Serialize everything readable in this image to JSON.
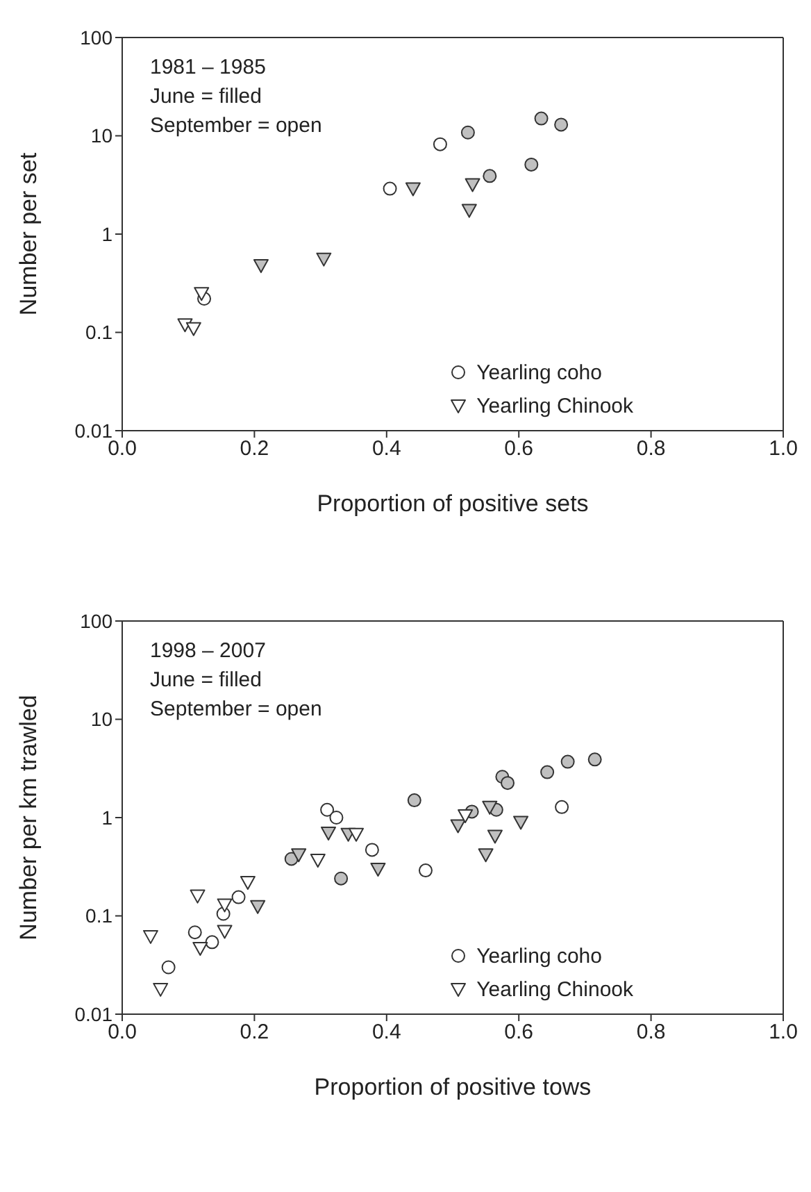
{
  "chart_data": [
    {
      "type": "scatter",
      "xlabel": "Proportion of positive sets",
      "ylabel": "Number per set",
      "log": "y",
      "legend": "bottom right",
      "xlim": [
        0,
        1
      ],
      "xticks": [
        {
          "value": 0,
          "label": "0.0"
        },
        {
          "value": 0.2,
          "label": "0.2"
        },
        {
          "value": 0.4,
          "label": "0.4"
        },
        {
          "value": 0.6,
          "label": "0.6"
        },
        {
          "value": 0.8,
          "label": "0.8"
        },
        {
          "value": 1,
          "label": "1.0"
        }
      ],
      "ylim": [
        0.01,
        100
      ],
      "yticks": [
        0.01,
        0.1,
        1,
        10,
        100
      ],
      "annotations": [
        "1981 – 1985",
        "June = filled",
        "September = open"
      ],
      "series": [
        {
          "color": "#c0c0c0",
          "marker": "circle",
          "x": [
            0.523,
            0.634,
            0.664,
            0.556,
            0.619
          ],
          "values": [
            10.8,
            15,
            13,
            3.9,
            5.1
          ]
        },
        {
          "name": "Yearling coho",
          "color": "#ffffff",
          "marker": "circle",
          "x": [
            0.481,
            0.405,
            0.124
          ],
          "values": [
            8.2,
            2.9,
            0.22
          ]
        },
        {
          "color": "#c0c0c0",
          "marker": "triangle",
          "x": [
            0.44,
            0.53,
            0.525,
            0.21,
            0.305
          ],
          "values": [
            2.9,
            3.2,
            1.75,
            0.48,
            0.56
          ]
        },
        {
          "name": "Yearling Chinook",
          "color": "#ffffff",
          "marker": "triangle",
          "x": [
            0.12,
            0.095,
            0.108
          ],
          "values": [
            0.25,
            0.12,
            0.11
          ]
        }
      ]
    },
    {
      "type": "scatter",
      "xlabel": "Proportion of positive tows",
      "ylabel": "Number per km trawled",
      "log": "y",
      "legend": "bottom right",
      "xlim": [
        0,
        1
      ],
      "xticks": [
        {
          "value": 0,
          "label": "0.0"
        },
        {
          "value": 0.2,
          "label": "0.2"
        },
        {
          "value": 0.4,
          "label": "0.4"
        },
        {
          "value": 0.6,
          "label": "0.6"
        },
        {
          "value": 0.8,
          "label": "0.8"
        },
        {
          "value": 1,
          "label": "1.0"
        }
      ],
      "ylim": [
        0.01,
        100
      ],
      "yticks": [
        0.01,
        0.1,
        1,
        10,
        100
      ],
      "annotations": [
        "1998 – 2007",
        "June = filled",
        "September = open"
      ],
      "series": [
        {
          "color": "#c0c0c0",
          "marker": "circle",
          "x": [
            0.442,
            0.575,
            0.583,
            0.643,
            0.674,
            0.715,
            0.529,
            0.566,
            0.256,
            0.331
          ],
          "values": [
            1.5,
            2.6,
            2.25,
            2.9,
            3.7,
            3.9,
            1.15,
            1.2,
            0.38,
            0.24
          ]
        },
        {
          "name": "Yearling coho",
          "color": "#ffffff",
          "marker": "circle",
          "x": [
            0.31,
            0.324,
            0.665,
            0.378,
            0.459,
            0.176,
            0.153,
            0.11,
            0.136,
            0.07
          ],
          "values": [
            1.2,
            1.0,
            1.28,
            0.47,
            0.29,
            0.155,
            0.105,
            0.068,
            0.054,
            0.03
          ]
        },
        {
          "color": "#c0c0c0",
          "marker": "triangle",
          "x": [
            0.312,
            0.342,
            0.387,
            0.508,
            0.55,
            0.564,
            0.603,
            0.556,
            0.267,
            0.205
          ],
          "values": [
            0.7,
            0.68,
            0.3,
            0.83,
            0.42,
            0.65,
            0.9,
            1.28,
            0.42,
            0.125
          ]
        },
        {
          "name": "Yearling Chinook",
          "color": "#ffffff",
          "marker": "triangle",
          "x": [
            0.519,
            0.354,
            0.296,
            0.114,
            0.155,
            0.155,
            0.118,
            0.043,
            0.058,
            0.19
          ],
          "values": [
            1.05,
            0.68,
            0.37,
            0.16,
            0.13,
            0.07,
            0.047,
            0.062,
            0.018,
            0.22
          ]
        }
      ]
    }
  ]
}
